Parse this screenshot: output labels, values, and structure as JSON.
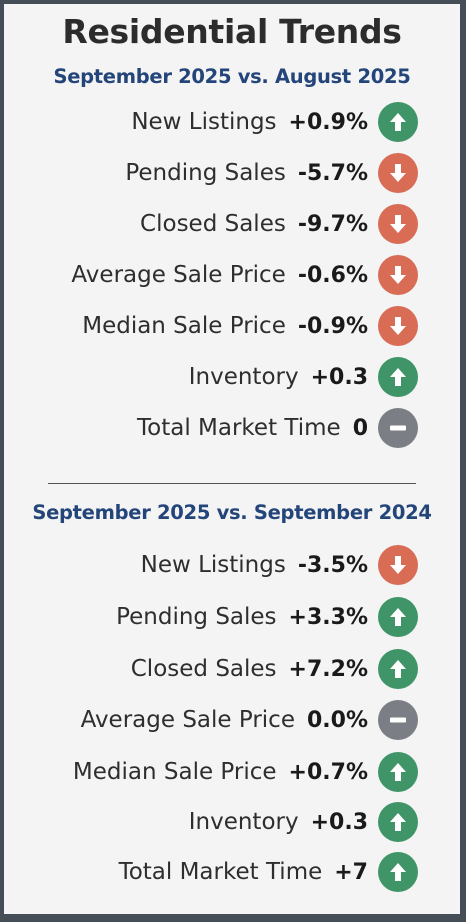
{
  "title": "Residential Trends",
  "sections": [
    {
      "heading": "September 2025 vs. August 2025",
      "rows": [
        {
          "label": "New Listings",
          "value": "+0.9%",
          "trend": "up"
        },
        {
          "label": "Pending Sales",
          "value": "-5.7%",
          "trend": "down"
        },
        {
          "label": "Closed Sales",
          "value": "-9.7%",
          "trend": "down"
        },
        {
          "label": "Average Sale Price",
          "value": "-0.6%",
          "trend": "down"
        },
        {
          "label": "Median Sale Price",
          "value": "-0.9%",
          "trend": "down"
        },
        {
          "label": "Inventory",
          "value": "+0.3",
          "trend": "up"
        },
        {
          "label": "Total Market Time",
          "value": "0",
          "trend": "flat"
        }
      ]
    },
    {
      "heading": "September 2025 vs. September 2024",
      "rows": [
        {
          "label": "New Listings",
          "value": "-3.5%",
          "trend": "down"
        },
        {
          "label": "Pending Sales",
          "value": "+3.3%",
          "trend": "up"
        },
        {
          "label": "Closed Sales",
          "value": "+7.2%",
          "trend": "up"
        },
        {
          "label": "Average Sale Price",
          "value": "0.0%",
          "trend": "flat"
        },
        {
          "label": "Median Sale Price",
          "value": "+0.7%",
          "trend": "up"
        },
        {
          "label": "Inventory",
          "value": "+0.3",
          "trend": "up"
        },
        {
          "label": "Total Market Time",
          "value": "+7",
          "trend": "up"
        }
      ]
    }
  ],
  "colors": {
    "up": "#3f9567",
    "down": "#d86c55",
    "flat": "#7b7e84",
    "heading": "#24457a",
    "frame": "#454d57"
  },
  "icons": {
    "up": "arrow-up-icon",
    "down": "arrow-down-icon",
    "flat": "minus-icon"
  }
}
